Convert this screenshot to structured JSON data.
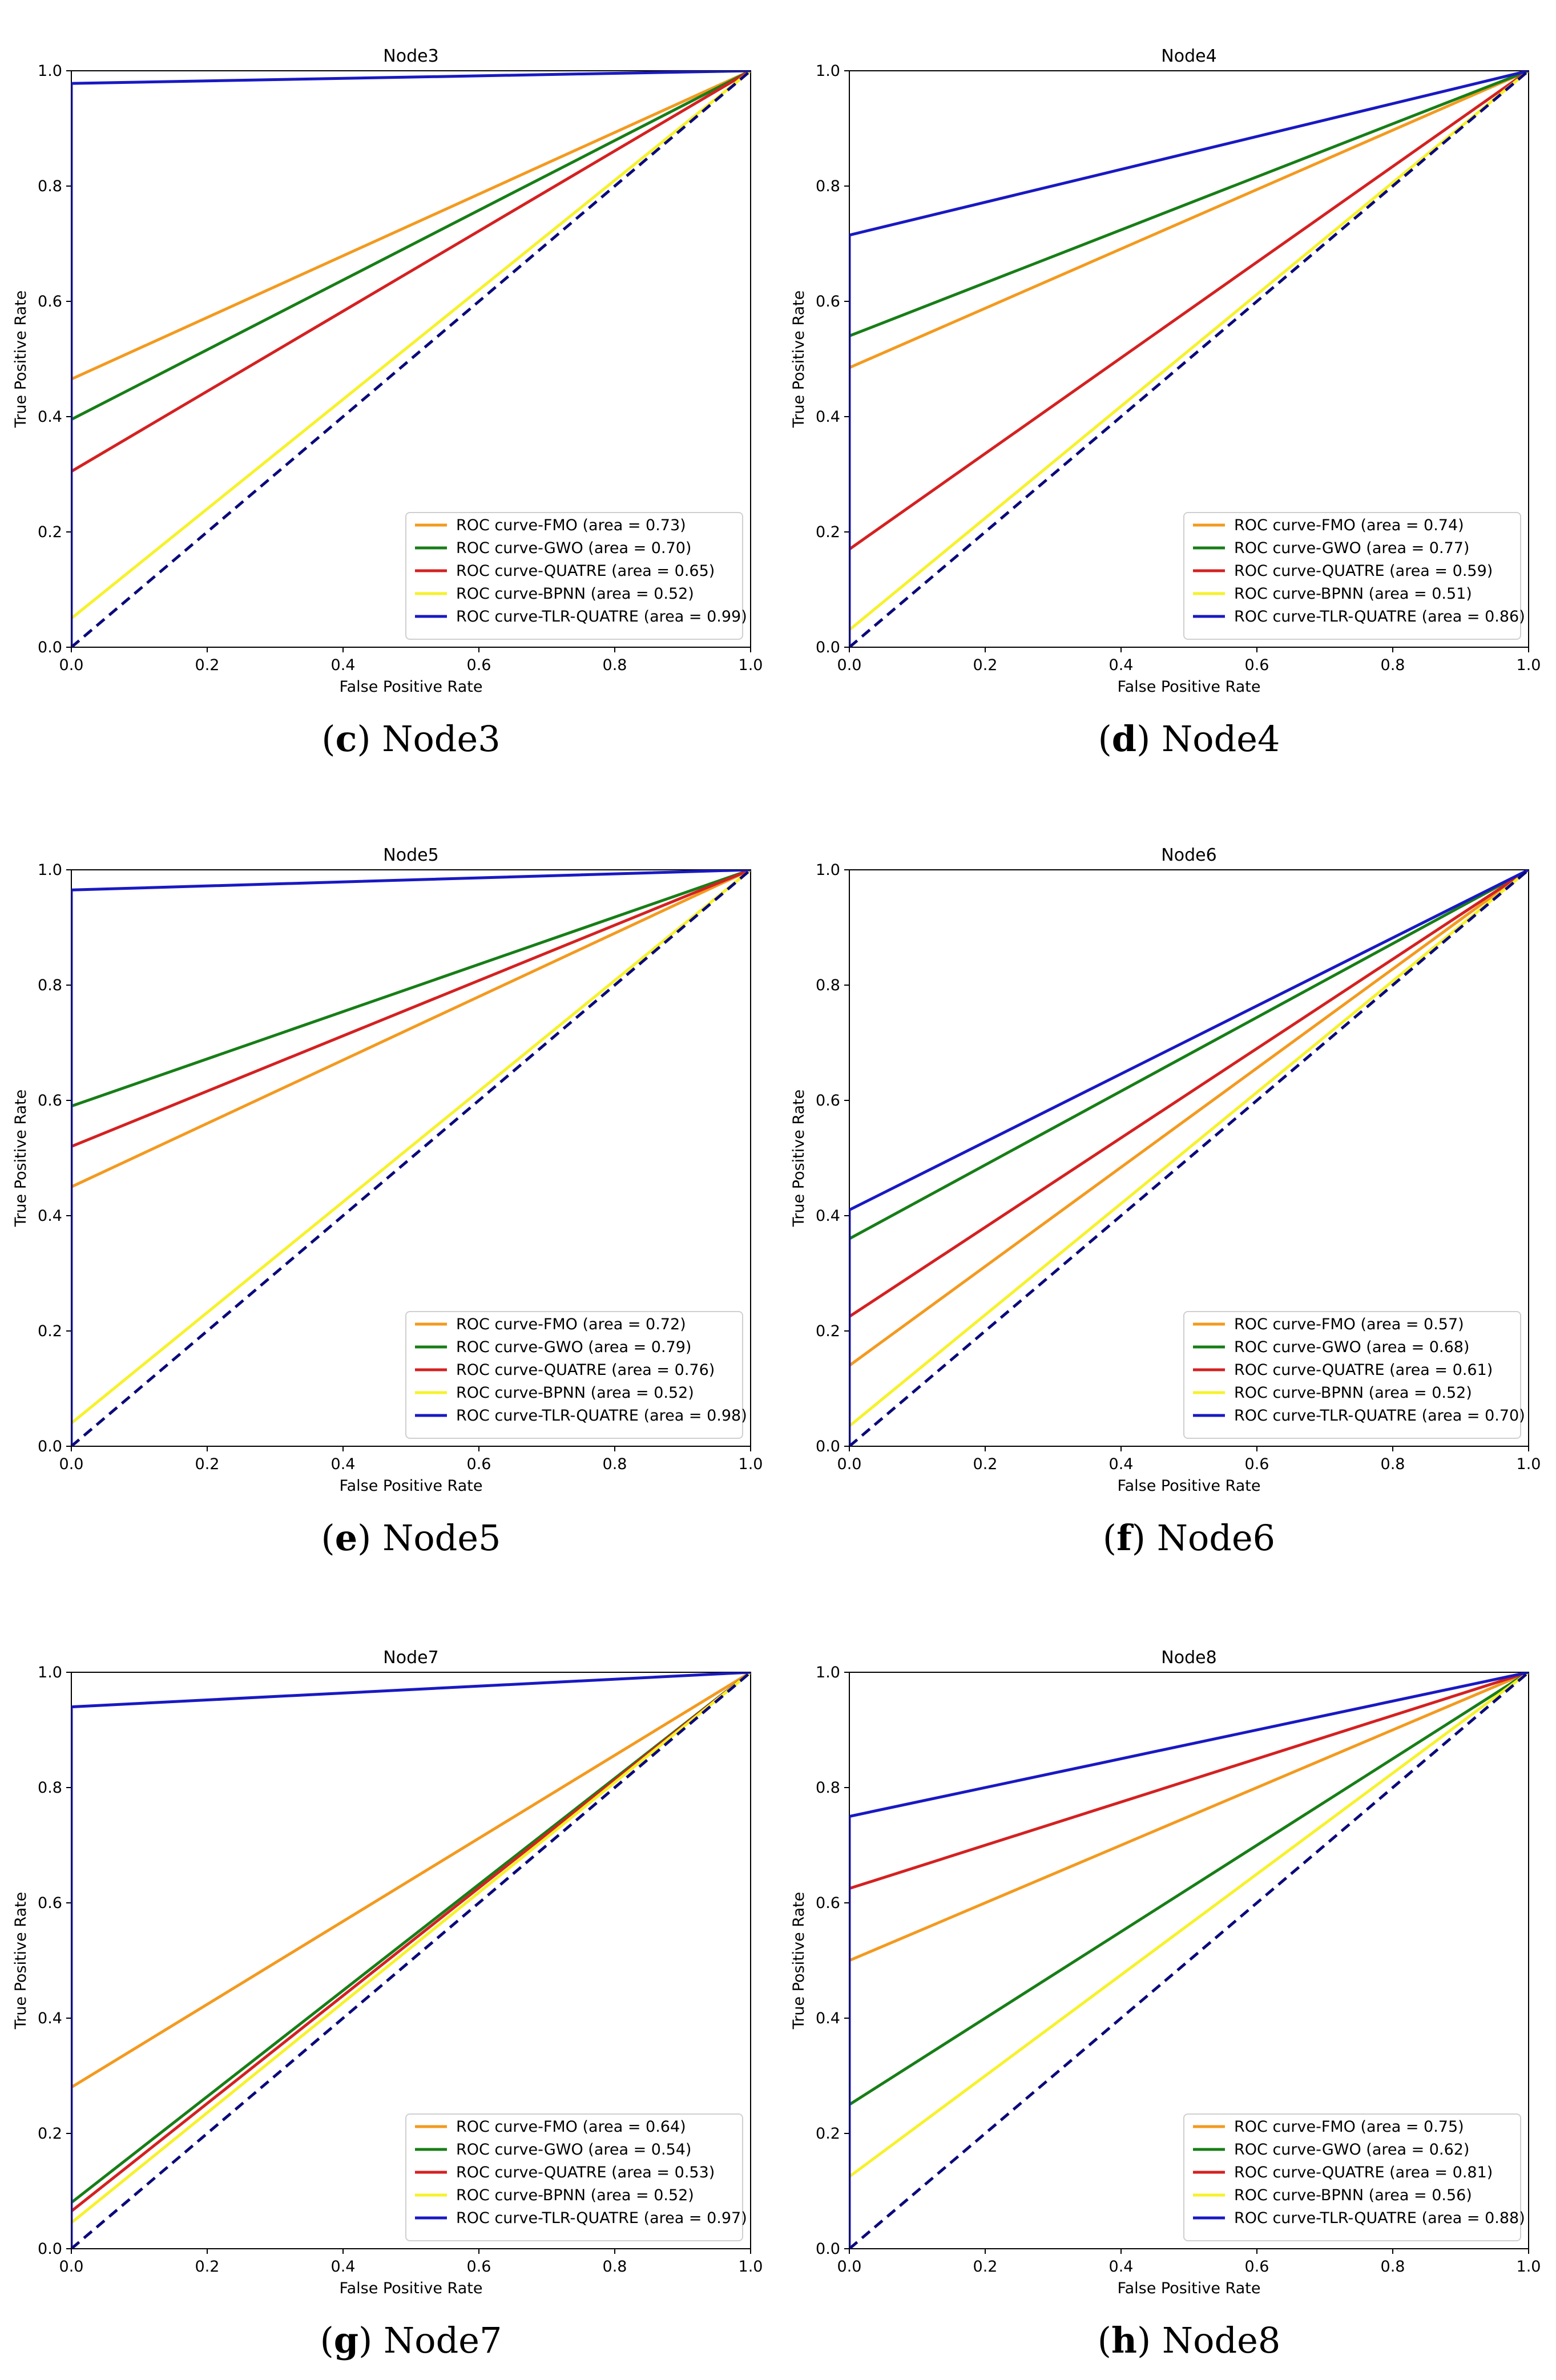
{
  "chart_data": [
    {
      "type": "line",
      "title": "Node3",
      "caption_letter": "c",
      "caption_text": "Node3",
      "xlabel": "False Positive Rate",
      "ylabel": "True Positive Rate",
      "xlim": [
        0.0,
        1.0
      ],
      "ylim": [
        0.0,
        1.0
      ],
      "xticks": [
        "0.0",
        "0.2",
        "0.4",
        "0.6",
        "0.8",
        "1.0"
      ],
      "yticks": [
        "0.0",
        "0.2",
        "0.4",
        "0.6",
        "0.8",
        "1.0"
      ],
      "grid": false,
      "legend_position": "lower-right",
      "series": [
        {
          "name": "ROC curve-FMO (area = 0.73)",
          "color": "#f39a1f",
          "x": [
            0,
            0,
            1
          ],
          "y": [
            0,
            0.465,
            1
          ]
        },
        {
          "name": "ROC curve-GWO (area = 0.70)",
          "color": "#177e17",
          "x": [
            0,
            0,
            1
          ],
          "y": [
            0,
            0.395,
            1
          ]
        },
        {
          "name": "ROC curve-QUATRE (area = 0.65)",
          "color": "#d42121",
          "x": [
            0,
            0,
            1
          ],
          "y": [
            0,
            0.305,
            1
          ]
        },
        {
          "name": "ROC curve-BPNN (area = 0.52)",
          "color": "#f6f22a",
          "x": [
            0,
            0,
            1
          ],
          "y": [
            0,
            0.05,
            1
          ]
        },
        {
          "name": "ROC curve-TLR-QUATRE (area = 0.99)",
          "color": "#1919c3",
          "x": [
            0,
            0,
            1
          ],
          "y": [
            0,
            0.978,
            1
          ]
        }
      ],
      "diagonal": {
        "color": "#0a0a7a",
        "x": [
          0,
          1
        ],
        "y": [
          0,
          1
        ]
      }
    },
    {
      "type": "line",
      "title": "Node4",
      "caption_letter": "d",
      "caption_text": "Node4",
      "xlabel": "False Positive Rate",
      "ylabel": "True Positive Rate",
      "xlim": [
        0.0,
        1.0
      ],
      "ylim": [
        0.0,
        1.0
      ],
      "xticks": [
        "0.0",
        "0.2",
        "0.4",
        "0.6",
        "0.8",
        "1.0"
      ],
      "yticks": [
        "0.0",
        "0.2",
        "0.4",
        "0.6",
        "0.8",
        "1.0"
      ],
      "grid": false,
      "legend_position": "lower-right",
      "series": [
        {
          "name": "ROC curve-FMO (area = 0.74)",
          "color": "#f39a1f",
          "x": [
            0,
            0,
            1
          ],
          "y": [
            0,
            0.485,
            1
          ]
        },
        {
          "name": "ROC curve-GWO (area = 0.77)",
          "color": "#177e17",
          "x": [
            0,
            0,
            1
          ],
          "y": [
            0,
            0.54,
            1
          ]
        },
        {
          "name": "ROC curve-QUATRE (area = 0.59)",
          "color": "#d42121",
          "x": [
            0,
            0,
            1
          ],
          "y": [
            0,
            0.17,
            1
          ]
        },
        {
          "name": "ROC curve-BPNN (area = 0.51)",
          "color": "#f6f22a",
          "x": [
            0,
            0,
            1
          ],
          "y": [
            0,
            0.03,
            1
          ]
        },
        {
          "name": "ROC curve-TLR-QUATRE (area = 0.86)",
          "color": "#1919c3",
          "x": [
            0,
            0,
            1
          ],
          "y": [
            0,
            0.715,
            1
          ]
        }
      ],
      "diagonal": {
        "color": "#0a0a7a",
        "x": [
          0,
          1
        ],
        "y": [
          0,
          1
        ]
      }
    },
    {
      "type": "line",
      "title": "Node5",
      "caption_letter": "e",
      "caption_text": "Node5",
      "xlabel": "False Positive Rate",
      "ylabel": "True Positive Rate",
      "xlim": [
        0.0,
        1.0
      ],
      "ylim": [
        0.0,
        1.0
      ],
      "xticks": [
        "0.0",
        "0.2",
        "0.4",
        "0.6",
        "0.8",
        "1.0"
      ],
      "yticks": [
        "0.0",
        "0.2",
        "0.4",
        "0.6",
        "0.8",
        "1.0"
      ],
      "grid": false,
      "legend_position": "lower-right",
      "series": [
        {
          "name": "ROC curve-FMO (area = 0.72)",
          "color": "#f39a1f",
          "x": [
            0,
            0,
            1
          ],
          "y": [
            0,
            0.45,
            1
          ]
        },
        {
          "name": "ROC curve-GWO (area = 0.79)",
          "color": "#177e17",
          "x": [
            0,
            0,
            1
          ],
          "y": [
            0,
            0.59,
            1
          ]
        },
        {
          "name": "ROC curve-QUATRE (area = 0.76)",
          "color": "#d42121",
          "x": [
            0,
            0,
            1
          ],
          "y": [
            0,
            0.52,
            1
          ]
        },
        {
          "name": "ROC curve-BPNN (area = 0.52)",
          "color": "#f6f22a",
          "x": [
            0,
            0,
            1
          ],
          "y": [
            0,
            0.04,
            1
          ]
        },
        {
          "name": "ROC curve-TLR-QUATRE (area = 0.98)",
          "color": "#1919c3",
          "x": [
            0,
            0,
            1
          ],
          "y": [
            0,
            0.965,
            1
          ]
        }
      ],
      "diagonal": {
        "color": "#0a0a7a",
        "x": [
          0,
          1
        ],
        "y": [
          0,
          1
        ]
      }
    },
    {
      "type": "line",
      "title": "Node6",
      "caption_letter": "f",
      "caption_text": "Node6",
      "xlabel": "False Positive Rate",
      "ylabel": "True Positive Rate",
      "xlim": [
        0.0,
        1.0
      ],
      "ylim": [
        0.0,
        1.0
      ],
      "xticks": [
        "0.0",
        "0.2",
        "0.4",
        "0.6",
        "0.8",
        "1.0"
      ],
      "yticks": [
        "0.0",
        "0.2",
        "0.4",
        "0.6",
        "0.8",
        "1.0"
      ],
      "grid": false,
      "legend_position": "lower-right",
      "series": [
        {
          "name": "ROC curve-FMO (area = 0.57)",
          "color": "#f39a1f",
          "x": [
            0,
            0,
            1
          ],
          "y": [
            0,
            0.14,
            1
          ]
        },
        {
          "name": "ROC curve-GWO (area = 0.68)",
          "color": "#177e17",
          "x": [
            0,
            0,
            1
          ],
          "y": [
            0,
            0.36,
            1
          ]
        },
        {
          "name": "ROC curve-QUATRE (area = 0.61)",
          "color": "#d42121",
          "x": [
            0,
            0,
            1
          ],
          "y": [
            0,
            0.225,
            1
          ]
        },
        {
          "name": "ROC curve-BPNN (area = 0.52)",
          "color": "#f6f22a",
          "x": [
            0,
            0,
            1
          ],
          "y": [
            0,
            0.035,
            1
          ]
        },
        {
          "name": "ROC curve-TLR-QUATRE (area = 0.70)",
          "color": "#1919c3",
          "x": [
            0,
            0,
            1
          ],
          "y": [
            0,
            0.41,
            1
          ]
        }
      ],
      "diagonal": {
        "color": "#0a0a7a",
        "x": [
          0,
          1
        ],
        "y": [
          0,
          1
        ]
      }
    },
    {
      "type": "line",
      "title": "Node7",
      "caption_letter": "g",
      "caption_text": "Node7",
      "xlabel": "False Positive Rate",
      "ylabel": "True Positive Rate",
      "xlim": [
        0.0,
        1.0
      ],
      "ylim": [
        0.0,
        1.0
      ],
      "xticks": [
        "0.0",
        "0.2",
        "0.4",
        "0.6",
        "0.8",
        "1.0"
      ],
      "yticks": [
        "0.0",
        "0.2",
        "0.4",
        "0.6",
        "0.8",
        "1.0"
      ],
      "grid": false,
      "legend_position": "lower-right",
      "series": [
        {
          "name": "ROC curve-FMO (area = 0.64)",
          "color": "#f39a1f",
          "x": [
            0,
            0,
            1
          ],
          "y": [
            0,
            0.28,
            1
          ]
        },
        {
          "name": "ROC curve-GWO (area = 0.54)",
          "color": "#177e17",
          "x": [
            0,
            0,
            1
          ],
          "y": [
            0,
            0.08,
            1
          ]
        },
        {
          "name": "ROC curve-QUATRE (area = 0.53)",
          "color": "#d42121",
          "x": [
            0,
            0,
            1
          ],
          "y": [
            0,
            0.065,
            1
          ]
        },
        {
          "name": "ROC curve-BPNN (area = 0.52)",
          "color": "#f6f22a",
          "x": [
            0,
            0,
            1
          ],
          "y": [
            0,
            0.045,
            1
          ]
        },
        {
          "name": "ROC curve-TLR-QUATRE (area = 0.97)",
          "color": "#1919c3",
          "x": [
            0,
            0,
            1
          ],
          "y": [
            0,
            0.94,
            1
          ]
        }
      ],
      "diagonal": {
        "color": "#0a0a7a",
        "x": [
          0,
          1
        ],
        "y": [
          0,
          1
        ]
      }
    },
    {
      "type": "line",
      "title": "Node8",
      "caption_letter": "h",
      "caption_text": "Node8",
      "xlabel": "False Positive Rate",
      "ylabel": "True Positive Rate",
      "xlim": [
        0.0,
        1.0
      ],
      "ylim": [
        0.0,
        1.0
      ],
      "xticks": [
        "0.0",
        "0.2",
        "0.4",
        "0.6",
        "0.8",
        "1.0"
      ],
      "yticks": [
        "0.0",
        "0.2",
        "0.4",
        "0.6",
        "0.8",
        "1.0"
      ],
      "grid": false,
      "legend_position": "lower-right",
      "series": [
        {
          "name": "ROC curve-FMO (area = 0.75)",
          "color": "#f39a1f",
          "x": [
            0,
            0,
            1
          ],
          "y": [
            0,
            0.5,
            1
          ]
        },
        {
          "name": "ROC curve-GWO (area = 0.62)",
          "color": "#177e17",
          "x": [
            0,
            0,
            1
          ],
          "y": [
            0,
            0.25,
            1
          ]
        },
        {
          "name": "ROC curve-QUATRE (area = 0.81)",
          "color": "#d42121",
          "x": [
            0,
            0,
            1
          ],
          "y": [
            0,
            0.625,
            1
          ]
        },
        {
          "name": "ROC curve-BPNN (area = 0.56)",
          "color": "#f6f22a",
          "x": [
            0,
            0,
            1
          ],
          "y": [
            0,
            0.125,
            1
          ]
        },
        {
          "name": "ROC curve-TLR-QUATRE (area = 0.88)",
          "color": "#1919c3",
          "x": [
            0,
            0,
            1
          ],
          "y": [
            0,
            0.75,
            1
          ]
        }
      ],
      "diagonal": {
        "color": "#0a0a7a",
        "x": [
          0,
          1
        ],
        "y": [
          0,
          1
        ]
      }
    }
  ]
}
